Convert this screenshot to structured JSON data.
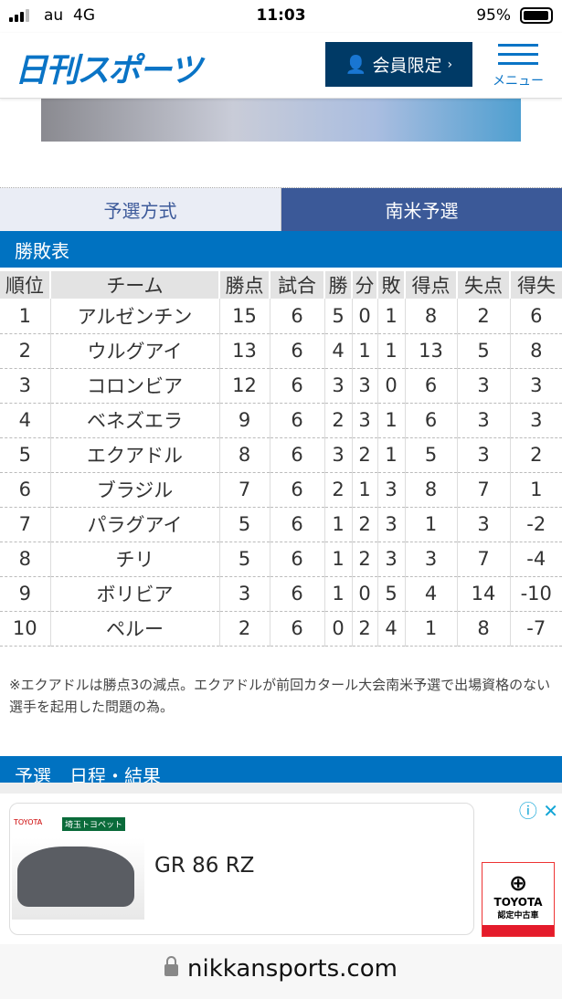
{
  "status_bar": {
    "carrier": "au",
    "network": "4G",
    "time": "11:03",
    "battery": "95%",
    "battery_level": 0.95
  },
  "header": {
    "logo": "日刊スポーツ",
    "member_button": "会員限定",
    "member_chevron": "›",
    "menu_label": "メニュー"
  },
  "tabs": [
    {
      "label": "予選方式",
      "active": false
    },
    {
      "label": "南米予選",
      "active": true
    }
  ],
  "standings": {
    "title": "勝敗表",
    "columns": [
      "順位",
      "チーム",
      "勝点",
      "試合",
      "勝",
      "分",
      "敗",
      "得点",
      "失点",
      "得失"
    ],
    "rows": [
      [
        "1",
        "アルゼンチン",
        "15",
        "6",
        "5",
        "0",
        "1",
        "8",
        "2",
        "6"
      ],
      [
        "2",
        "ウルグアイ",
        "13",
        "6",
        "4",
        "1",
        "1",
        "13",
        "5",
        "8"
      ],
      [
        "3",
        "コロンビア",
        "12",
        "6",
        "3",
        "3",
        "0",
        "6",
        "3",
        "3"
      ],
      [
        "4",
        "ベネズエラ",
        "9",
        "6",
        "2",
        "3",
        "1",
        "6",
        "3",
        "3"
      ],
      [
        "5",
        "エクアドル",
        "8",
        "6",
        "3",
        "2",
        "1",
        "5",
        "3",
        "2"
      ],
      [
        "6",
        "ブラジル",
        "7",
        "6",
        "2",
        "1",
        "3",
        "8",
        "7",
        "1"
      ],
      [
        "7",
        "パラグアイ",
        "5",
        "6",
        "1",
        "2",
        "3",
        "1",
        "3",
        "-2"
      ],
      [
        "8",
        "チリ",
        "5",
        "6",
        "1",
        "2",
        "3",
        "3",
        "7",
        "-4"
      ],
      [
        "9",
        "ボリビア",
        "3",
        "6",
        "1",
        "0",
        "5",
        "4",
        "14",
        "-10"
      ],
      [
        "10",
        "ペルー",
        "2",
        "6",
        "0",
        "2",
        "4",
        "1",
        "8",
        "-7"
      ]
    ],
    "note": "※エクアドルは勝点3の減点。エクアドルが前回カタール大会南米予選で出場資格のない選手を起用した問題の為。"
  },
  "next_section": {
    "title": "予選　日程・結果"
  },
  "ad": {
    "title": "GR 86 RZ",
    "image_logo": "TOYOTA",
    "image_brand": "埼玉トヨペット",
    "badge_brand": "TOYOTA",
    "badge_sub": "認定中古車",
    "info_icon": "ⓘ",
    "close_icon": "✕"
  },
  "url_bar": {
    "domain": "nikkansports.com"
  }
}
